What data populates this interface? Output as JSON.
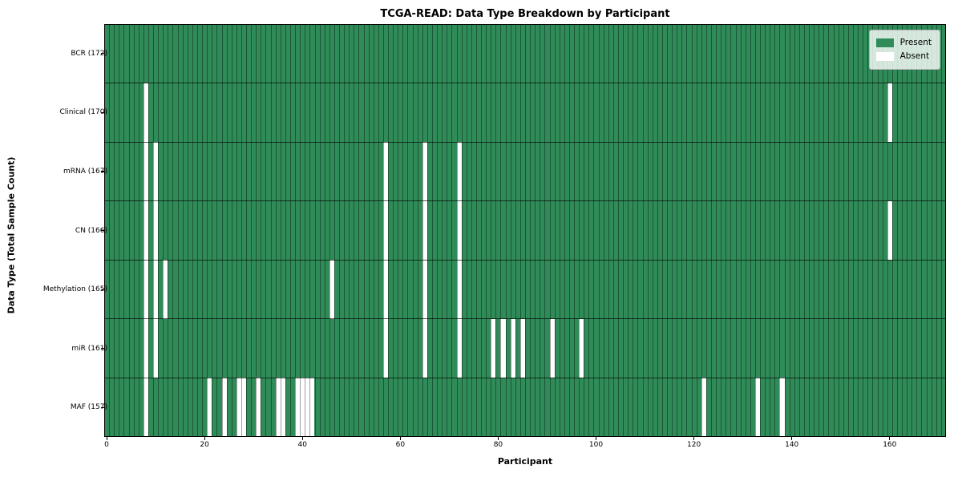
{
  "chart_data": {
    "type": "heatmap",
    "title": "TCGA-READ: Data Type Breakdown by Participant",
    "xlabel": "Participant",
    "ylabel": "Data Type (Total Sample Count)",
    "n_participants": 172,
    "x_ticks": [
      0,
      20,
      40,
      60,
      80,
      100,
      120,
      140,
      160
    ],
    "colors": {
      "present": "#2f8b57",
      "absent": "#ffffff",
      "grid": "rgba(0,0,0,0.38)",
      "row_divider": "rgba(0,0,0,0.65)"
    },
    "legend": [
      {
        "label": "Present",
        "color": "#2f8b57"
      },
      {
        "label": "Absent",
        "color": "#ffffff"
      }
    ],
    "rows": [
      {
        "label": "BCR (172)",
        "total": 172,
        "absent": []
      },
      {
        "label": "Clinical (170)",
        "total": 170,
        "absent": [
          8,
          160
        ]
      },
      {
        "label": "mRNA (167)",
        "total": 167,
        "absent": [
          8,
          10,
          57,
          65,
          72
        ]
      },
      {
        "label": "CN (166)",
        "total": 166,
        "absent": [
          8,
          10,
          57,
          65,
          72,
          160
        ]
      },
      {
        "label": "Methylation (165)",
        "total": 165,
        "absent": [
          8,
          10,
          12,
          46,
          57,
          65,
          72
        ]
      },
      {
        "label": "miR (161)",
        "total": 161,
        "absent": [
          8,
          10,
          57,
          65,
          72,
          79,
          81,
          83,
          85,
          91,
          97
        ]
      },
      {
        "label": "MAF (157)",
        "total": 157,
        "absent": [
          8,
          21,
          24,
          27,
          28,
          31,
          35,
          36,
          39,
          40,
          41,
          42,
          122,
          133,
          138
        ]
      }
    ]
  }
}
